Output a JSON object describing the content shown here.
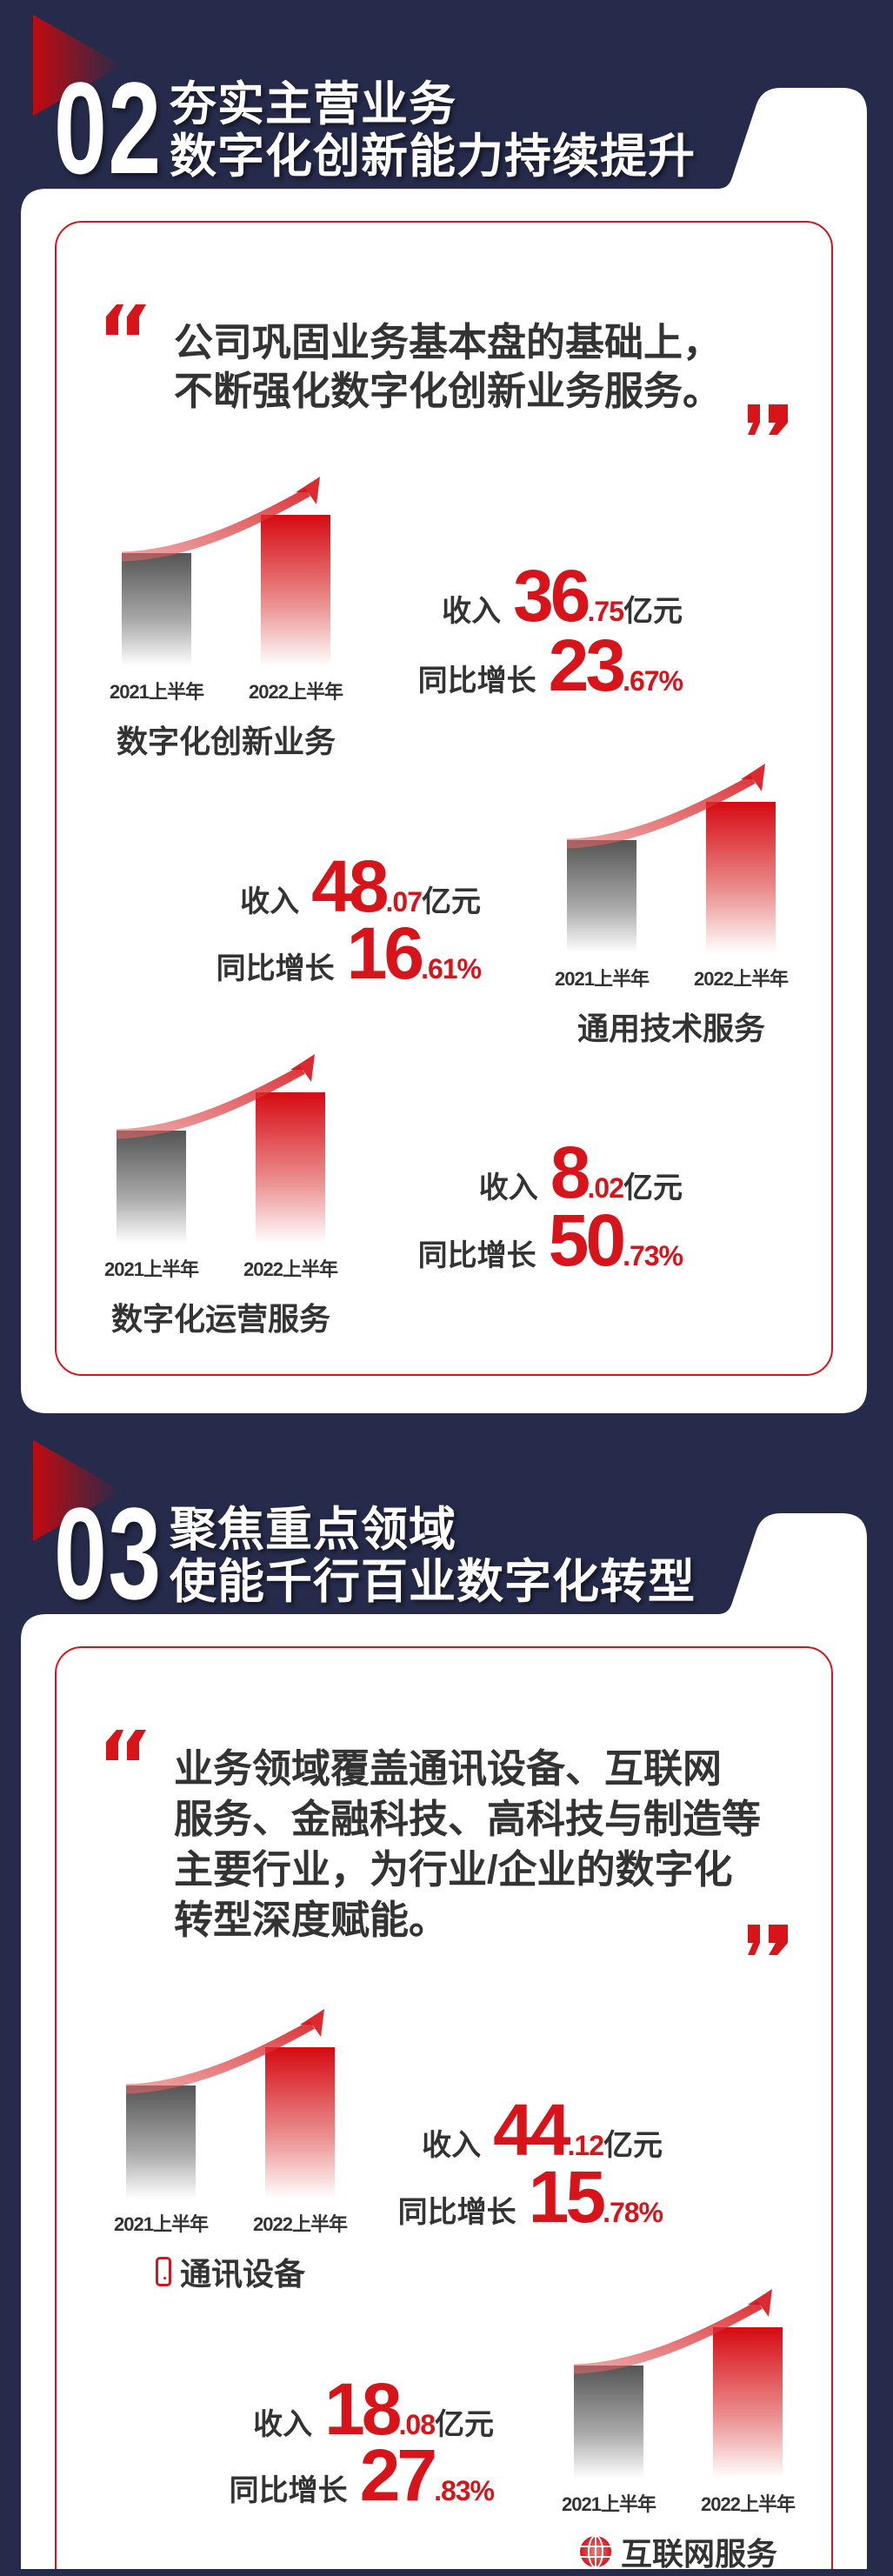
{
  "colors": {
    "background": "#262b4b",
    "accent": "#d7141a",
    "text": "#333333",
    "card": "#ffffff"
  },
  "sections": [
    {
      "number": "02",
      "title_line1": "夯实主营业务",
      "title_line2": "数字化创新能力持续提升",
      "quote_lines": [
        "公司巩固业务基本盘的基础上，",
        "不断强化数字化创新业务服务。"
      ],
      "blocks": [
        {
          "name": "数字化创新业务",
          "icon": null,
          "bar_labels": [
            "2021上半年",
            "2022上半年"
          ],
          "revenue_label": "收入",
          "revenue_int": "36",
          "revenue_dec": ".75",
          "revenue_unit": "亿元",
          "growth_label": "同比增长",
          "growth_int": "23",
          "growth_dec": ".67%"
        },
        {
          "name": "通用技术服务",
          "icon": null,
          "bar_labels": [
            "2021上半年",
            "2022上半年"
          ],
          "revenue_label": "收入",
          "revenue_int": "48",
          "revenue_dec": ".07",
          "revenue_unit": "亿元",
          "growth_label": "同比增长",
          "growth_int": "16",
          "growth_dec": ".61%"
        },
        {
          "name": "数字化运营服务",
          "icon": null,
          "bar_labels": [
            "2021上半年",
            "2022上半年"
          ],
          "revenue_label": "收入",
          "revenue_int": "8",
          "revenue_dec": ".02",
          "revenue_unit": "亿元",
          "growth_label": "同比增长",
          "growth_int": "50",
          "growth_dec": ".73%"
        }
      ]
    },
    {
      "number": "03",
      "title_line1": "聚焦重点领域",
      "title_line2": "使能千行百业数字化转型",
      "quote_lines": [
        "业务领域覆盖通讯设备、互联网",
        "服务、金融科技、高科技与制造等",
        "主要行业，为行业/企业的数字化",
        "转型深度赋能。"
      ],
      "blocks": [
        {
          "name": "通讯设备",
          "icon": "phone-icon",
          "bar_labels": [
            "2021上半年",
            "2022上半年"
          ],
          "revenue_label": "收入",
          "revenue_int": "44",
          "revenue_dec": ".12",
          "revenue_unit": "亿元",
          "growth_label": "同比增长",
          "growth_int": "15",
          "growth_dec": ".78%"
        },
        {
          "name": "互联网服务",
          "icon": "globe-icon",
          "bar_labels": [
            "2021上半年",
            "2022上半年"
          ],
          "revenue_label": "收入",
          "revenue_int": "18",
          "revenue_dec": ".08",
          "revenue_unit": "亿元",
          "growth_label": "同比增长",
          "growth_int": "27",
          "growth_dec": ".83%"
        }
      ]
    }
  ]
}
